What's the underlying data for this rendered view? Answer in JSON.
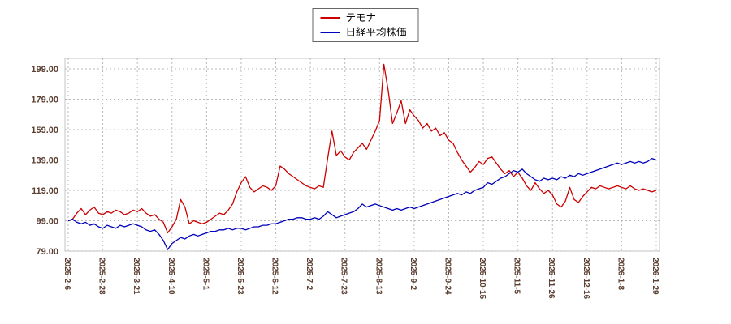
{
  "chart_data": {
    "type": "line",
    "title": "",
    "legend_position": "top-center",
    "grid": true,
    "y_ticks": [
      79,
      99,
      119,
      139,
      159,
      179,
      199
    ],
    "ylim": [
      79,
      205
    ],
    "x_tick_labels": [
      "2025-2-6",
      "2025-2-28",
      "2025-3-21",
      "2025-4-10",
      "2025-5-1",
      "2025-5-23",
      "2025-6-12",
      "2025-7-2",
      "2025-7-23",
      "2025-8-13",
      "2025-9-2",
      "2025-9-24",
      "2025-10-15",
      "2025-11-5",
      "2025-11-26",
      "2025-12-16",
      "2026-1-8",
      "2026-1-29"
    ],
    "colors": {
      "grid": "#b9b9b9",
      "plot_border": "#c4c4c4",
      "tick_label": "#5c4033",
      "series_red": "#cc0000",
      "series_blue": "#0000bb"
    },
    "series": [
      {
        "name": "テモナ",
        "color": "#cc0000",
        "values": [
          99,
          100,
          104,
          107,
          103,
          106,
          108,
          104,
          103,
          105,
          104,
          106,
          105,
          103,
          104,
          106,
          105,
          107,
          104,
          102,
          103,
          100,
          98,
          91,
          95,
          100,
          113,
          108,
          97,
          99,
          98,
          97,
          98,
          100,
          102,
          104,
          103,
          106,
          110,
          118,
          124,
          128,
          121,
          118,
          120,
          122,
          121,
          119,
          122,
          135,
          133,
          130,
          128,
          126,
          124,
          122,
          121,
          120,
          122,
          121,
          140,
          158,
          142,
          145,
          141,
          139,
          144,
          147,
          150,
          146,
          152,
          158,
          165,
          202,
          185,
          163,
          170,
          178,
          163,
          172,
          168,
          165,
          160,
          163,
          158,
          160,
          155,
          157,
          152,
          150,
          144,
          139,
          135,
          131,
          134,
          138,
          136,
          140,
          141,
          137,
          133,
          130,
          132,
          128,
          131,
          127,
          122,
          119,
          124,
          120,
          117,
          119,
          116,
          110,
          108,
          112,
          121,
          113,
          111,
          115,
          118,
          121,
          120,
          122,
          121,
          120,
          121,
          122,
          121,
          120,
          122,
          120,
          119,
          120,
          119,
          118,
          119
        ]
      },
      {
        "name": "日経平均株価",
        "color": "#0000bb",
        "values": [
          99,
          100,
          98,
          97,
          98,
          96,
          97,
          95,
          94,
          96,
          95,
          94,
          96,
          95,
          96,
          97,
          96,
          95,
          93,
          92,
          93,
          90,
          86,
          80,
          84,
          86,
          88,
          87,
          89,
          90,
          89,
          90,
          91,
          92,
          92,
          93,
          93,
          94,
          93,
          94,
          94,
          93,
          94,
          95,
          95,
          96,
          96,
          97,
          97,
          98,
          99,
          100,
          100,
          101,
          101,
          100,
          100,
          101,
          100,
          102,
          105,
          103,
          101,
          102,
          103,
          104,
          105,
          107,
          110,
          108,
          109,
          110,
          109,
          108,
          107,
          106,
          107,
          106,
          107,
          108,
          107,
          108,
          109,
          110,
          111,
          112,
          113,
          114,
          115,
          116,
          117,
          116,
          118,
          117,
          119,
          120,
          121,
          124,
          123,
          125,
          127,
          128,
          130,
          132,
          131,
          133,
          130,
          128,
          126,
          125,
          127,
          126,
          127,
          126,
          128,
          127,
          129,
          128,
          130,
          129,
          130,
          131,
          132,
          133,
          134,
          135,
          136,
          137,
          136,
          137,
          138,
          137,
          138,
          137,
          138,
          140,
          139
        ]
      }
    ]
  }
}
